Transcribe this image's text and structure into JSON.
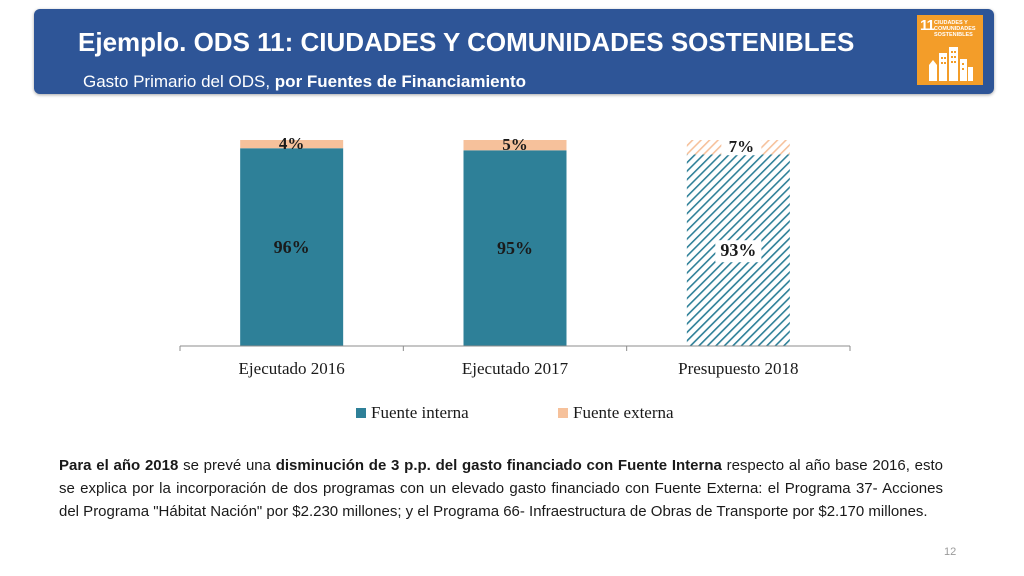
{
  "header": {
    "title": "Ejemplo. ODS 11: CIUDADES Y COMUNIDADES SOSTENIBLES",
    "subtitle_normal": "Gasto Primario del ODS,",
    "subtitle_bold": "por Fuentes de Financiamiento"
  },
  "sdg_badge": {
    "number": "11",
    "text": "CIUDADES Y COMUNIDADES SOSTENIBLES",
    "icon": "city-buildings-icon",
    "color": "#f39d29"
  },
  "chart_data": {
    "type": "bar",
    "stacked": true,
    "categories": [
      "Ejecutado 2016",
      "Ejecutado 2017",
      "Presupuesto 2018"
    ],
    "series": [
      {
        "name": "Fuente interna",
        "values": [
          96,
          95,
          93
        ],
        "color": "#2e8098"
      },
      {
        "name": "Fuente externa",
        "values": [
          4,
          5,
          7
        ],
        "color": "#f6c19b"
      }
    ],
    "data_labels": {
      "Fuente interna": [
        "96%",
        "95%",
        "93%"
      ],
      "Fuente externa": [
        "4%",
        "5%",
        "7%"
      ]
    },
    "hatched_categories": [
      "Presupuesto 2018"
    ],
    "ylim": [
      0,
      100
    ],
    "grid": false,
    "legend_position": "bottom"
  },
  "paragraph": {
    "s1": "Para el año 2018",
    "s2": " se prevé una ",
    "s3": "disminución de 3 p.p. del gasto financiado con Fuente Interna",
    "s4": " respecto al año base 2016, esto se explica por la incorporación de dos programas con un elevado gasto financiado con Fuente Externa: el Programa 37- Acciones del Programa \"Hábitat Nación\" por $2.230 millones; y el Programa 66- Infraestructura de Obras de Transporte por $2.170 millones."
  },
  "page_number": "12"
}
